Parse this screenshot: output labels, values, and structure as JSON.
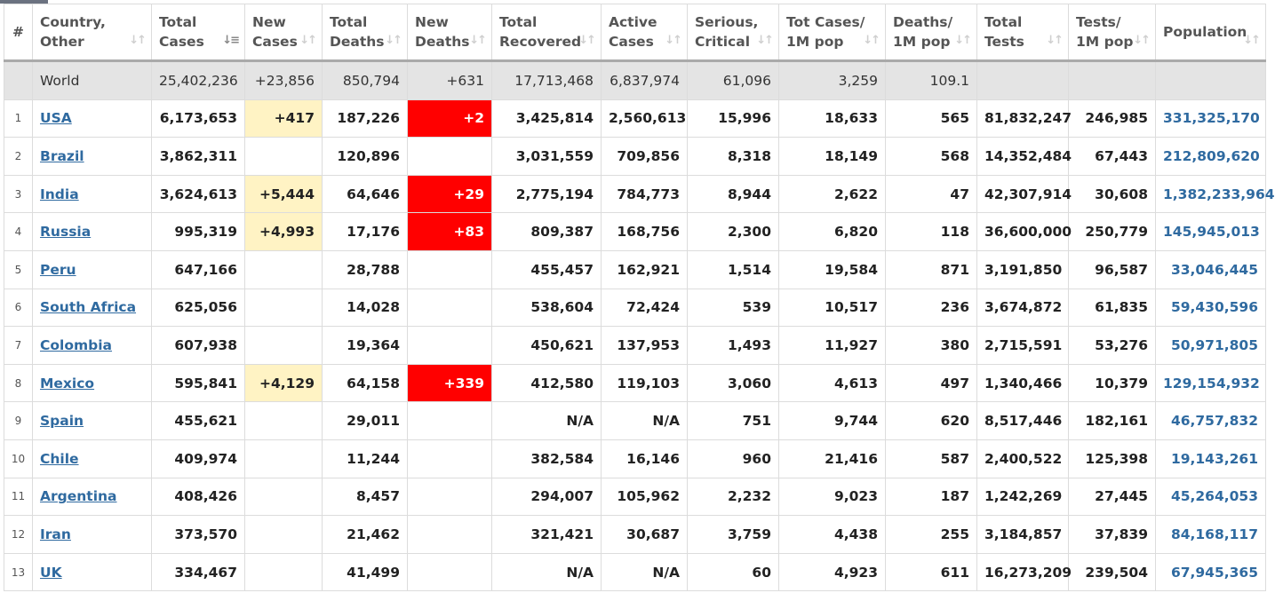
{
  "columns": [
    {
      "l1": "#",
      "l2": ""
    },
    {
      "l1": "Country,",
      "l2": "Other"
    },
    {
      "l1": "Total",
      "l2": "Cases"
    },
    {
      "l1": "New",
      "l2": "Cases"
    },
    {
      "l1": "Total",
      "l2": "Deaths"
    },
    {
      "l1": "New",
      "l2": "Deaths"
    },
    {
      "l1": "Total",
      "l2": "Recovered"
    },
    {
      "l1": "Active",
      "l2": "Cases"
    },
    {
      "l1": "Serious,",
      "l2": "Critical"
    },
    {
      "l1": "Tot Cases/",
      "l2": "1M pop"
    },
    {
      "l1": "Deaths/",
      "l2": "1M pop"
    },
    {
      "l1": "Total",
      "l2": "Tests"
    },
    {
      "l1": "Tests/",
      "l2": "1M pop"
    },
    {
      "l1": "Population",
      "l2": ""
    }
  ],
  "sort_icon": "↓↑",
  "sort_active_icon": "↓≡",
  "world": {
    "country": "World",
    "total_cases": "25,402,236",
    "new_cases": "+23,856",
    "total_deaths": "850,794",
    "new_deaths": "+631",
    "total_recovered": "17,713,468",
    "active_cases": "6,837,974",
    "serious": "61,096",
    "cases_per_m": "3,259",
    "deaths_per_m": "109.1",
    "total_tests": "",
    "tests_per_m": "",
    "population": ""
  },
  "rows": [
    {
      "idx": "1",
      "country": "USA",
      "total_cases": "6,173,653",
      "new_cases": "+417",
      "total_deaths": "187,226",
      "new_deaths": "+2",
      "total_recovered": "3,425,814",
      "active_cases": "2,560,613",
      "serious": "15,996",
      "cases_per_m": "18,633",
      "deaths_per_m": "565",
      "total_tests": "81,832,247",
      "tests_per_m": "246,985",
      "population": "331,325,170"
    },
    {
      "idx": "2",
      "country": "Brazil",
      "total_cases": "3,862,311",
      "new_cases": "",
      "total_deaths": "120,896",
      "new_deaths": "",
      "total_recovered": "3,031,559",
      "active_cases": "709,856",
      "serious": "8,318",
      "cases_per_m": "18,149",
      "deaths_per_m": "568",
      "total_tests": "14,352,484",
      "tests_per_m": "67,443",
      "population": "212,809,620"
    },
    {
      "idx": "3",
      "country": "India",
      "total_cases": "3,624,613",
      "new_cases": "+5,444",
      "total_deaths": "64,646",
      "new_deaths": "+29",
      "total_recovered": "2,775,194",
      "active_cases": "784,773",
      "serious": "8,944",
      "cases_per_m": "2,622",
      "deaths_per_m": "47",
      "total_tests": "42,307,914",
      "tests_per_m": "30,608",
      "population": "1,382,233,964"
    },
    {
      "idx": "4",
      "country": "Russia",
      "total_cases": "995,319",
      "new_cases": "+4,993",
      "total_deaths": "17,176",
      "new_deaths": "+83",
      "total_recovered": "809,387",
      "active_cases": "168,756",
      "serious": "2,300",
      "cases_per_m": "6,820",
      "deaths_per_m": "118",
      "total_tests": "36,600,000",
      "tests_per_m": "250,779",
      "population": "145,945,013"
    },
    {
      "idx": "5",
      "country": "Peru",
      "total_cases": "647,166",
      "new_cases": "",
      "total_deaths": "28,788",
      "new_deaths": "",
      "total_recovered": "455,457",
      "active_cases": "162,921",
      "serious": "1,514",
      "cases_per_m": "19,584",
      "deaths_per_m": "871",
      "total_tests": "3,191,850",
      "tests_per_m": "96,587",
      "population": "33,046,445"
    },
    {
      "idx": "6",
      "country": "South Africa",
      "total_cases": "625,056",
      "new_cases": "",
      "total_deaths": "14,028",
      "new_deaths": "",
      "total_recovered": "538,604",
      "active_cases": "72,424",
      "serious": "539",
      "cases_per_m": "10,517",
      "deaths_per_m": "236",
      "total_tests": "3,674,872",
      "tests_per_m": "61,835",
      "population": "59,430,596"
    },
    {
      "idx": "7",
      "country": "Colombia",
      "total_cases": "607,938",
      "new_cases": "",
      "total_deaths": "19,364",
      "new_deaths": "",
      "total_recovered": "450,621",
      "active_cases": "137,953",
      "serious": "1,493",
      "cases_per_m": "11,927",
      "deaths_per_m": "380",
      "total_tests": "2,715,591",
      "tests_per_m": "53,276",
      "population": "50,971,805"
    },
    {
      "idx": "8",
      "country": "Mexico",
      "total_cases": "595,841",
      "new_cases": "+4,129",
      "total_deaths": "64,158",
      "new_deaths": "+339",
      "total_recovered": "412,580",
      "active_cases": "119,103",
      "serious": "3,060",
      "cases_per_m": "4,613",
      "deaths_per_m": "497",
      "total_tests": "1,340,466",
      "tests_per_m": "10,379",
      "population": "129,154,932"
    },
    {
      "idx": "9",
      "country": "Spain",
      "total_cases": "455,621",
      "new_cases": "",
      "total_deaths": "29,011",
      "new_deaths": "",
      "total_recovered": "N/A",
      "active_cases": "N/A",
      "serious": "751",
      "cases_per_m": "9,744",
      "deaths_per_m": "620",
      "total_tests": "8,517,446",
      "tests_per_m": "182,161",
      "population": "46,757,832"
    },
    {
      "idx": "10",
      "country": "Chile",
      "total_cases": "409,974",
      "new_cases": "",
      "total_deaths": "11,244",
      "new_deaths": "",
      "total_recovered": "382,584",
      "active_cases": "16,146",
      "serious": "960",
      "cases_per_m": "21,416",
      "deaths_per_m": "587",
      "total_tests": "2,400,522",
      "tests_per_m": "125,398",
      "population": "19,143,261"
    },
    {
      "idx": "11",
      "country": "Argentina",
      "total_cases": "408,426",
      "new_cases": "",
      "total_deaths": "8,457",
      "new_deaths": "",
      "total_recovered": "294,007",
      "active_cases": "105,962",
      "serious": "2,232",
      "cases_per_m": "9,023",
      "deaths_per_m": "187",
      "total_tests": "1,242,269",
      "tests_per_m": "27,445",
      "population": "45,264,053"
    },
    {
      "idx": "12",
      "country": "Iran",
      "total_cases": "373,570",
      "new_cases": "",
      "total_deaths": "21,462",
      "new_deaths": "",
      "total_recovered": "321,421",
      "active_cases": "30,687",
      "serious": "3,759",
      "cases_per_m": "4,438",
      "deaths_per_m": "255",
      "total_tests": "3,184,857",
      "tests_per_m": "37,839",
      "population": "84,168,117"
    },
    {
      "idx": "13",
      "country": "UK",
      "total_cases": "334,467",
      "new_cases": "",
      "total_deaths": "41,499",
      "new_deaths": "",
      "total_recovered": "N/A",
      "active_cases": "N/A",
      "serious": "60",
      "cases_per_m": "4,923",
      "deaths_per_m": "611",
      "total_tests": "16,273,209",
      "tests_per_m": "239,504",
      "population": "67,945,365"
    }
  ],
  "colors": {
    "new_cases_highlight": "#fff3c4",
    "new_deaths_highlight": "#ff0000",
    "link": "#2f6aa0",
    "world_row_bg": "#e4e4e4"
  }
}
